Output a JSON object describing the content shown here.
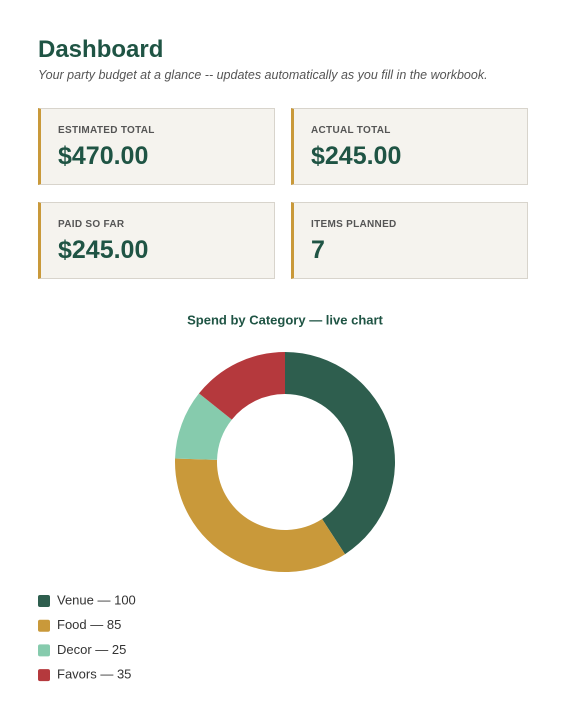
{
  "header": {
    "title": "Dashboard",
    "subtitle": "Your party budget at a glance -- updates automatically as you fill in the workbook."
  },
  "cards": [
    {
      "label": "ESTIMATED TOTAL",
      "value": "$470.00"
    },
    {
      "label": "ACTUAL TOTAL",
      "value": "$245.00"
    },
    {
      "label": "PAID SO FAR",
      "value": "$245.00"
    },
    {
      "label": "ITEMS PLANNED",
      "value": "7"
    }
  ],
  "chart_data": {
    "type": "donut",
    "title": "Spend by Category — live chart",
    "categories": [
      "Venue — 100",
      "Food — 85",
      "Decor — 25",
      "Favors — 35"
    ],
    "values": [
      100,
      85,
      25,
      35
    ],
    "colors": [
      "#2e5e4e",
      "#c9993a",
      "#86cbad",
      "#b5393d"
    ]
  }
}
